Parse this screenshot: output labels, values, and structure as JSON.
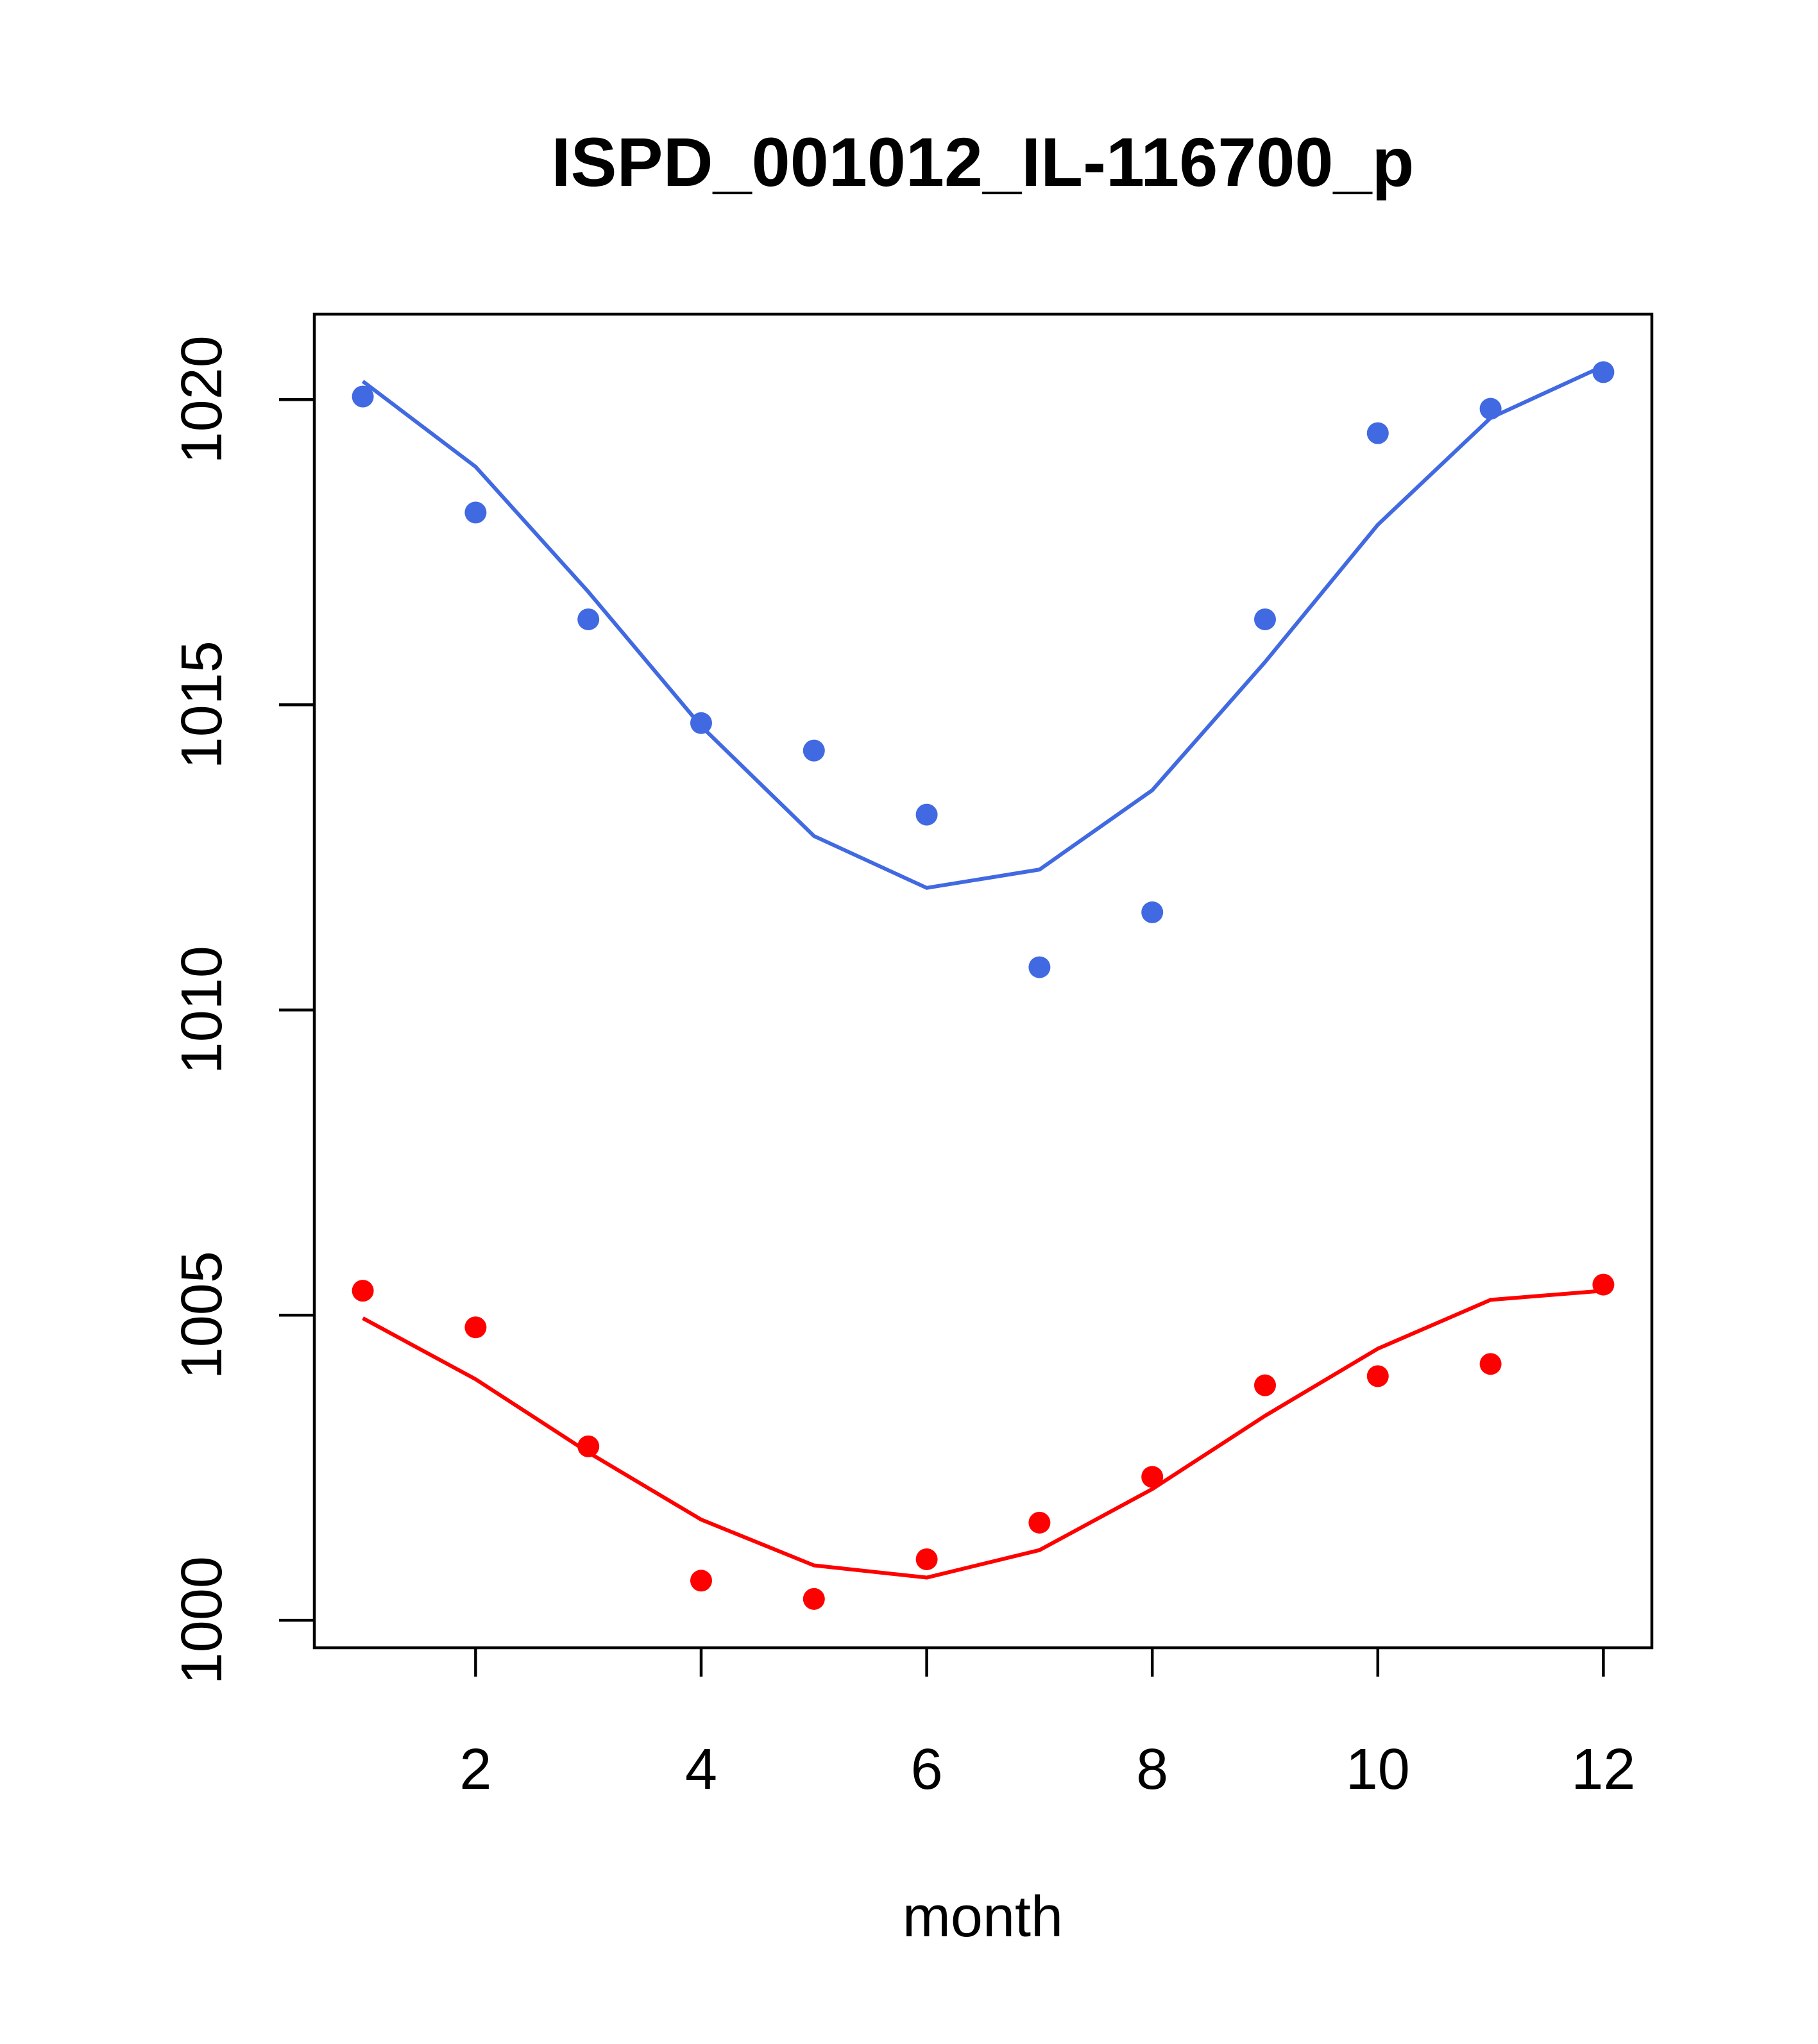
{
  "chart_data": {
    "type": "scatter",
    "title": "ISPD_001012_IL-116700_p",
    "xlabel": "month",
    "ylabel": "",
    "xlim": [
      0.57,
      12.43
    ],
    "ylim": [
      999.55,
      1021.4
    ],
    "x_ticks": [
      2,
      4,
      6,
      8,
      10,
      12
    ],
    "x_tick_labels": [
      "2",
      "4",
      "6",
      "8",
      "10",
      "12"
    ],
    "y_ticks": [
      1000,
      1005,
      1010,
      1015,
      1020
    ],
    "y_tick_labels": [
      "1000",
      "1005",
      "1010",
      "1015",
      "1020"
    ],
    "grid": false,
    "legend": "none",
    "x": [
      1,
      2,
      3,
      4,
      5,
      6,
      7,
      8,
      9,
      10,
      11,
      12
    ],
    "series": [
      {
        "color": "#4169E1",
        "points": [
          1020.05,
          1018.15,
          1016.4,
          1014.7,
          1014.25,
          1013.2,
          1010.7,
          1011.6,
          1016.4,
          1019.45,
          1019.85,
          1020.45
        ],
        "line": [
          1020.3,
          1018.9,
          1016.85,
          1014.65,
          1012.85,
          1012.0,
          1012.3,
          1013.6,
          1015.7,
          1017.95,
          1019.7,
          1020.55
        ]
      },
      {
        "color": "#FF0000",
        "points": [
          1005.4,
          1004.8,
          1002.85,
          1000.65,
          1000.35,
          1001.0,
          1001.6,
          1002.35,
          1003.85,
          1004.0,
          1004.2,
          1005.5
        ],
        "line": [
          1004.95,
          1003.95,
          1002.75,
          1001.65,
          1000.9,
          1000.7,
          1001.15,
          1002.15,
          1003.35,
          1004.45,
          1005.25,
          1005.4
        ]
      }
    ]
  }
}
